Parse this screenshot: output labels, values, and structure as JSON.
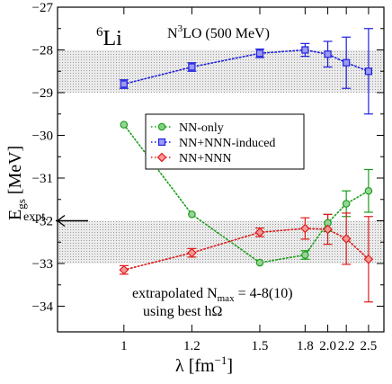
{
  "chart_data": {
    "type": "scatter",
    "nucleus": {
      "mass_number": "6",
      "symbol": "Li"
    },
    "interaction": {
      "prefix": "N",
      "superscript": "3",
      "suffix": "LO (500 MeV)"
    },
    "xlabel": {
      "main": "λ [fm",
      "superscript": "−1",
      "close": "]"
    },
    "ylabel": {
      "main": "E",
      "subscript": "gs",
      "unit": " [MeV]"
    },
    "x_scale": "reciprocal",
    "xlim": [
      0.86,
      2.76
    ],
    "ylim": [
      -34.6,
      -27
    ],
    "x_ticks": [
      {
        "value": 1,
        "label": "1"
      },
      {
        "value": 1.2,
        "label": "1.2"
      },
      {
        "value": 1.5,
        "label": "1.5"
      },
      {
        "value": 1.8,
        "label": "1.8"
      },
      {
        "value": 2.0,
        "label": "2.0"
      },
      {
        "value": 2.2,
        "label": "2.2"
      },
      {
        "value": 2.5,
        "label": "2.5"
      }
    ],
    "y_ticks": [
      -34,
      -33,
      -32,
      -31,
      -30,
      -29,
      -28,
      -27
    ],
    "y_tick_labels": [
      "−34",
      "−33",
      "−32",
      "−31",
      "−30",
      "−29",
      "−28",
      "−27"
    ],
    "bands": [
      {
        "y_range": [
          -29,
          -28
        ]
      },
      {
        "y_range": [
          -33,
          -32
        ]
      }
    ],
    "series": [
      {
        "name": "NN-only",
        "color": "#1a9e1a",
        "marker": "circle",
        "x": [
          1,
          1.2,
          1.5,
          1.8,
          2.0,
          2.2,
          2.5
        ],
        "y": [
          -29.75,
          -31.85,
          -32.98,
          -32.8,
          -32.05,
          -31.6,
          -31.3
        ],
        "err": [
          0,
          0,
          0,
          0.1,
          0.2,
          0.3,
          0.5
        ]
      },
      {
        "name": "NN+NNN-induced",
        "color": "#1f1fdf",
        "marker": "square",
        "x": [
          1,
          1.2,
          1.5,
          1.8,
          2.0,
          2.2,
          2.5
        ],
        "y": [
          -28.8,
          -28.4,
          -28.08,
          -28.0,
          -28.1,
          -28.3,
          -28.5
        ],
        "err": [
          0.1,
          0.1,
          0.1,
          0.15,
          0.3,
          0.6,
          1.0
        ]
      },
      {
        "name": "NN+NNN",
        "color": "#e01a1a",
        "marker": "diamond",
        "x": [
          1,
          1.2,
          1.5,
          1.8,
          2.0,
          2.2,
          2.5
        ],
        "y": [
          -33.15,
          -32.75,
          -32.27,
          -32.18,
          -32.2,
          -32.42,
          -32.9
        ],
        "err": [
          0.1,
          0.1,
          0.1,
          0.25,
          0.35,
          0.6,
          1.0
        ]
      }
    ],
    "legend_position": "center-right",
    "expt": {
      "label": "expt.",
      "y": -32
    },
    "annotation": {
      "line1_prefix": "extrapolated N",
      "line1_subscript": "max",
      "line1_suffix": " = 4-8(10)",
      "line2": "using best hΩ"
    }
  }
}
